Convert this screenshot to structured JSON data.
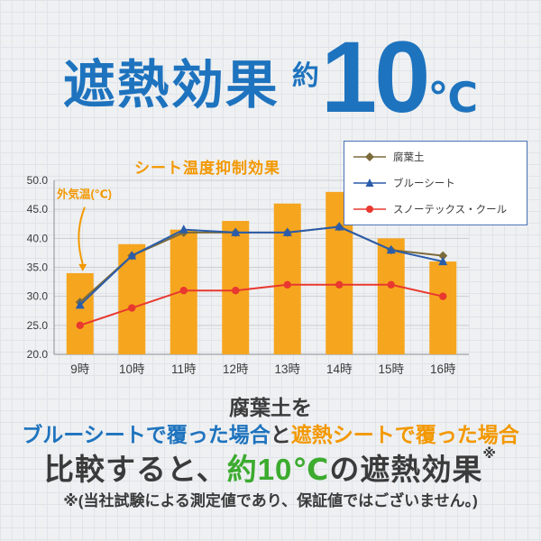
{
  "header": {
    "title": "遮熱効果",
    "approx": "約",
    "number": "10",
    "unit": "℃"
  },
  "chart_data": {
    "type": "combo",
    "title": "シート温度抑制効果",
    "annotation": "外気温(℃)",
    "categories": [
      "9時",
      "10時",
      "11時",
      "12時",
      "13時",
      "14時",
      "15時",
      "16時"
    ],
    "ylim": [
      20,
      50
    ],
    "yticks": [
      20,
      25,
      30,
      35,
      40,
      45,
      50
    ],
    "ytick_labels": [
      "20.0",
      "25.0",
      "30.0",
      "35.0",
      "40.0",
      "45.0",
      "50.0"
    ],
    "grid": true,
    "legend_position": "top-right",
    "bar_series": {
      "name": "外気温(℃)",
      "color": "#f6a51f",
      "values": [
        34,
        39,
        41.5,
        43,
        46,
        48,
        40,
        36
      ]
    },
    "line_series": [
      {
        "name": "腐葉土",
        "color": "#7c6a3a",
        "marker": "diamond",
        "values": [
          29,
          37,
          41,
          41,
          41,
          42,
          38,
          37
        ]
      },
      {
        "name": "ブルーシート",
        "color": "#2a5caa",
        "marker": "triangle",
        "values": [
          28.5,
          37,
          41.5,
          41,
          41,
          42,
          38,
          36
        ]
      },
      {
        "name": "スノーテックス・クール",
        "color": "#e8382f",
        "marker": "circle",
        "values": [
          25,
          28,
          31,
          31,
          32,
          32,
          32,
          30
        ]
      }
    ]
  },
  "footer": {
    "line1": "腐葉土を",
    "line2_blue": "ブルーシートで覆った場合",
    "line2_mid": "と",
    "line2_orange": "遮熱シートで覆った場合",
    "line3_pre": "比較すると、",
    "line3_green": "約10℃",
    "line3_post": "の遮熱効果",
    "note_mark": "※",
    "disclaimer": "※(当社試験による測定値であり、保証値ではございません。)"
  },
  "colors": {
    "accent_blue": "#1e73be",
    "accent_orange": "#f39800",
    "accent_green": "#3cab2f",
    "bar_orange": "#f6a51f"
  }
}
